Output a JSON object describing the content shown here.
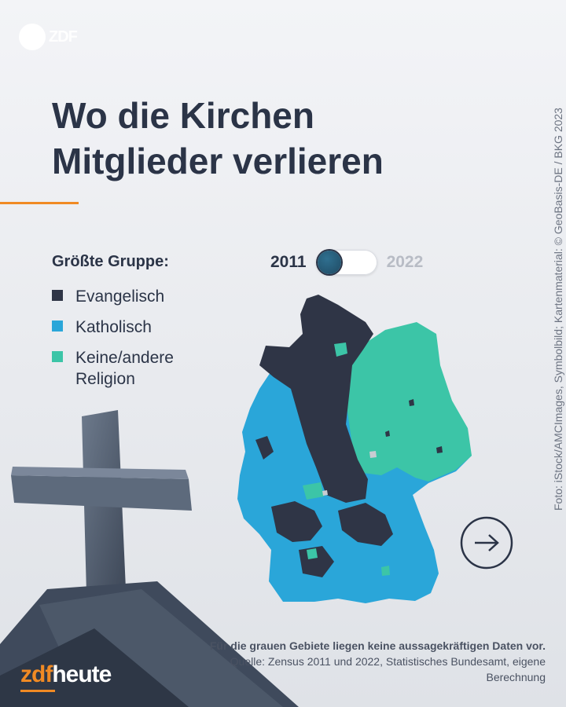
{
  "brand": {
    "logo_text": "ZDF",
    "footer_zdf": "zdf",
    "footer_heute": "heute"
  },
  "title": {
    "line1": "Wo die Kirchen",
    "line2": "Mitglieder verlieren"
  },
  "credit": "Foto: iStock/AMCImages, Symbolbild; Kartenmaterial: © GeoBasis-DE / BKG 2023",
  "legend": {
    "title": "Größte Gruppe:",
    "items": [
      {
        "label": "Evangelisch",
        "color": "#2f3546"
      },
      {
        "label": "Katholisch",
        "color": "#2aa6d9"
      },
      {
        "label": "Keine/andere Religion",
        "color": "#3cc5a7"
      }
    ]
  },
  "toggle": {
    "year_left": "2011",
    "year_right": "2022",
    "selected": "2011"
  },
  "footnote": {
    "bold": "Für die grauen Gebiete liegen keine aussagekräftigen Daten vor.",
    "rest": "Quelle: Zensus 2011 und 2022, Statistisches Bundesamt, eigene Berechnung"
  },
  "icons": {
    "next": "arrow-right-circle-icon",
    "cross": "church-cross-icon"
  }
}
